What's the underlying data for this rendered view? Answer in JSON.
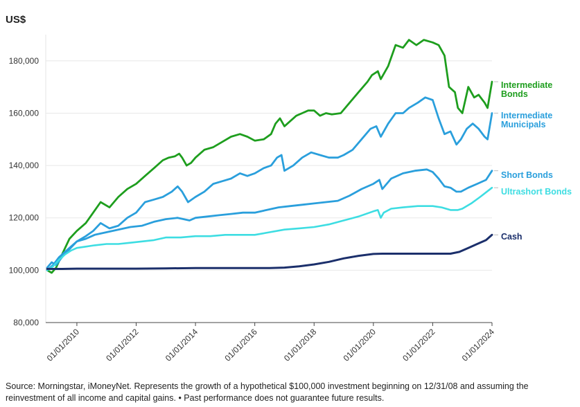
{
  "chart_data": {
    "type": "line",
    "ylabel": "US$",
    "ylim": [
      80000,
      190000
    ],
    "yticks": [
      80000,
      100000,
      120000,
      140000,
      160000,
      180000
    ],
    "ytick_labels": [
      "80,000",
      "100,000",
      "120,000",
      "140,000",
      "160,000",
      "180,000"
    ],
    "xlim": [
      2008.95,
      2024.0
    ],
    "xticks": [
      2010,
      2012,
      2014,
      2016,
      2018,
      2020,
      2022,
      2024
    ],
    "xtick_labels": [
      "01/01/2010",
      "01/01/2012",
      "01/01/2014",
      "01/01/2016",
      "01/01/2018",
      "01/01/2020",
      "01/01/2022",
      "01/01/2024"
    ],
    "grid": "horizontal",
    "legend": "right, labels at line ends",
    "series": [
      {
        "name": "Intermediate Bonds",
        "label_lines": [
          "Intermediate",
          "Bonds"
        ],
        "color": "#1e9e1e",
        "x": [
          2009.0,
          2009.15,
          2009.3,
          2009.5,
          2009.75,
          2010.0,
          2010.3,
          2010.55,
          2010.8,
          2011.1,
          2011.4,
          2011.7,
          2012.0,
          2012.3,
          2012.6,
          2012.9,
          2013.1,
          2013.3,
          2013.45,
          2013.55,
          2013.7,
          2013.85,
          2014.0,
          2014.3,
          2014.6,
          2014.9,
          2015.2,
          2015.5,
          2015.75,
          2016.0,
          2016.3,
          2016.55,
          2016.7,
          2016.85,
          2017.0,
          2017.2,
          2017.4,
          2017.6,
          2017.8,
          2018.0,
          2018.2,
          2018.4,
          2018.6,
          2018.9,
          2019.2,
          2019.5,
          2019.8,
          2019.95,
          2020.15,
          2020.25,
          2020.5,
          2020.75,
          2021.0,
          2021.2,
          2021.45,
          2021.7,
          2022.0,
          2022.2,
          2022.4,
          2022.55,
          2022.75,
          2022.85,
          2023.0,
          2023.2,
          2023.4,
          2023.55,
          2023.75,
          2023.85,
          2024.0
        ],
        "values": [
          100000,
          99000,
          101000,
          106000,
          112000,
          115000,
          118000,
          122000,
          126000,
          124000,
          128000,
          131000,
          133000,
          136000,
          139000,
          142000,
          143000,
          143500,
          144500,
          143000,
          140000,
          141000,
          143000,
          146000,
          147000,
          149000,
          151000,
          152000,
          151000,
          149500,
          150000,
          152000,
          156000,
          158000,
          155000,
          157000,
          159000,
          160000,
          161000,
          161000,
          159000,
          160000,
          159500,
          160000,
          164000,
          168000,
          172000,
          174500,
          176000,
          173000,
          178000,
          186000,
          185000,
          188000,
          186000,
          188000,
          187000,
          186000,
          182000,
          170000,
          168000,
          162000,
          160000,
          170000,
          166000,
          167000,
          164000,
          162000,
          172000
        ]
      },
      {
        "name": "Intermediate Municipals",
        "label_lines": [
          "Intermediate",
          "Municipals"
        ],
        "color": "#2a9fdc",
        "x": [
          2009.0,
          2009.15,
          2009.3,
          2009.5,
          2009.75,
          2010.0,
          2010.3,
          2010.55,
          2010.8,
          2011.1,
          2011.4,
          2011.7,
          2012.0,
          2012.3,
          2012.6,
          2012.9,
          2013.2,
          2013.4,
          2013.55,
          2013.75,
          2014.0,
          2014.3,
          2014.6,
          2014.9,
          2015.2,
          2015.5,
          2015.75,
          2016.0,
          2016.3,
          2016.55,
          2016.75,
          2016.9,
          2017.0,
          2017.3,
          2017.6,
          2017.9,
          2018.2,
          2018.5,
          2018.8,
          2019.0,
          2019.3,
          2019.6,
          2019.9,
          2020.1,
          2020.25,
          2020.5,
          2020.75,
          2021.0,
          2021.2,
          2021.5,
          2021.75,
          2022.0,
          2022.2,
          2022.4,
          2022.6,
          2022.8,
          2022.95,
          2023.15,
          2023.35,
          2023.55,
          2023.75,
          2023.85,
          2024.0
        ],
        "values": [
          101000,
          103000,
          102000,
          105000,
          108000,
          111000,
          113000,
          115000,
          118000,
          116000,
          117000,
          120000,
          122000,
          126000,
          127000,
          128000,
          130000,
          132000,
          130000,
          126000,
          128000,
          130000,
          133000,
          134000,
          135000,
          137000,
          136000,
          137000,
          139000,
          140000,
          143000,
          144000,
          138000,
          140000,
          143000,
          145000,
          144000,
          143000,
          143000,
          144000,
          146000,
          150000,
          154000,
          155000,
          151000,
          156000,
          160000,
          160000,
          162000,
          164000,
          166000,
          165000,
          158000,
          152000,
          153000,
          148000,
          150000,
          154000,
          156000,
          154000,
          151000,
          150000,
          160000
        ]
      },
      {
        "name": "Short Bonds",
        "label_lines": [
          "Short Bonds"
        ],
        "color": "#2a9fdc",
        "x": [
          2009.0,
          2009.2,
          2009.4,
          2009.6,
          2009.8,
          2010.0,
          2010.3,
          2010.6,
          2011.0,
          2011.4,
          2011.8,
          2012.2,
          2012.6,
          2013.0,
          2013.4,
          2013.6,
          2013.8,
          2014.0,
          2014.4,
          2014.8,
          2015.2,
          2015.6,
          2016.0,
          2016.4,
          2016.8,
          2017.2,
          2017.6,
          2018.0,
          2018.4,
          2018.8,
          2019.2,
          2019.6,
          2020.0,
          2020.2,
          2020.3,
          2020.6,
          2021.0,
          2021.4,
          2021.8,
          2022.0,
          2022.2,
          2022.4,
          2022.6,
          2022.8,
          2022.95,
          2023.2,
          2023.5,
          2023.8,
          2024.0
        ],
        "values": [
          100000,
          102000,
          105000,
          107000,
          109000,
          111000,
          112000,
          113500,
          114500,
          115500,
          116500,
          117000,
          118500,
          119500,
          120000,
          119500,
          119000,
          120000,
          120500,
          121000,
          121500,
          122000,
          122000,
          123000,
          124000,
          124500,
          125000,
          125500,
          126000,
          126500,
          128500,
          131000,
          133000,
          134500,
          131000,
          135000,
          137000,
          138000,
          138500,
          137500,
          135000,
          132000,
          131500,
          130000,
          130000,
          131500,
          133000,
          134500,
          138000
        ]
      },
      {
        "name": "Ultrashort Bonds",
        "label_lines": [
          "Ultrashort Bonds"
        ],
        "color": "#3ddde2",
        "x": [
          2009.0,
          2009.2,
          2009.4,
          2009.6,
          2009.8,
          2010.0,
          2010.3,
          2010.6,
          2011.0,
          2011.4,
          2011.8,
          2012.2,
          2012.6,
          2013.0,
          2013.5,
          2014.0,
          2014.5,
          2015.0,
          2015.5,
          2016.0,
          2016.5,
          2017.0,
          2017.5,
          2018.0,
          2018.5,
          2019.0,
          2019.5,
          2020.0,
          2020.15,
          2020.25,
          2020.35,
          2020.6,
          2021.0,
          2021.5,
          2022.0,
          2022.3,
          2022.6,
          2022.85,
          2023.0,
          2023.3,
          2023.6,
          2024.0
        ],
        "values": [
          100000,
          101500,
          104000,
          106000,
          107500,
          108500,
          109000,
          109500,
          110000,
          110000,
          110500,
          111000,
          111500,
          112500,
          112500,
          113000,
          113000,
          113500,
          113500,
          113500,
          114500,
          115500,
          116000,
          116500,
          117500,
          119000,
          120500,
          122500,
          123000,
          120000,
          122000,
          123500,
          124000,
          124500,
          124500,
          124000,
          123000,
          123000,
          123500,
          125500,
          128000,
          131500
        ]
      },
      {
        "name": "Cash",
        "label_lines": [
          "Cash"
        ],
        "color": "#1b2f6b",
        "x": [
          2009.0,
          2009.5,
          2010.0,
          2011.0,
          2012.0,
          2013.0,
          2014.0,
          2015.0,
          2016.0,
          2016.5,
          2017.0,
          2017.5,
          2018.0,
          2018.5,
          2019.0,
          2019.5,
          2020.0,
          2020.3,
          2020.6,
          2021.0,
          2021.5,
          2022.0,
          2022.3,
          2022.6,
          2022.9,
          2023.2,
          2023.5,
          2023.8,
          2024.0
        ],
        "values": [
          100500,
          100500,
          100600,
          100600,
          100600,
          100700,
          100800,
          100800,
          100800,
          100800,
          101000,
          101500,
          102200,
          103200,
          104500,
          105500,
          106200,
          106300,
          106300,
          106300,
          106300,
          106300,
          106300,
          106300,
          107000,
          108500,
          110000,
          111500,
          113500
        ]
      }
    ]
  },
  "source_note": "Source: Morningstar, iMoneyNet. Represents the growth of a hypothetical $100,000 investment beginning on 12/31/08 and assuming the reinvestment of all income and capital gains. • Past performance does not guarantee future results."
}
